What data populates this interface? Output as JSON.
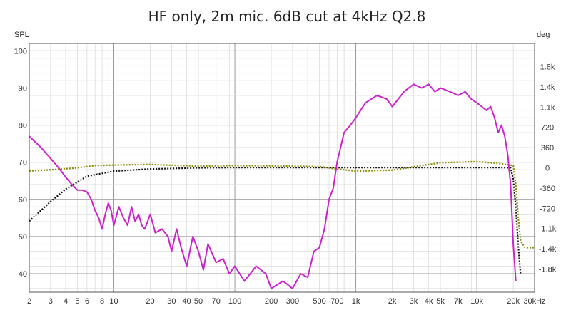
{
  "chart_data": {
    "type": "line",
    "title": "HF only, 2m mic. 6dB cut at 4kHz Q2.8",
    "left_axis_label": "SPL",
    "right_axis_label": "deg",
    "x_unit_suffix": "kHz",
    "x_scale": "log",
    "xlim": [
      2,
      30000
    ],
    "ylim_left": [
      35,
      102
    ],
    "ylim_right": [
      -2213,
      2213
    ],
    "x_ticks": [
      {
        "value": 2,
        "label": "2"
      },
      {
        "value": 3,
        "label": "3"
      },
      {
        "value": 4,
        "label": "4"
      },
      {
        "value": 5,
        "label": "5"
      },
      {
        "value": 6,
        "label": "6"
      },
      {
        "value": 8,
        "label": "8"
      },
      {
        "value": 10,
        "label": "10"
      },
      {
        "value": 20,
        "label": "20"
      },
      {
        "value": 30,
        "label": "30"
      },
      {
        "value": 40,
        "label": "40"
      },
      {
        "value": 50,
        "label": "50"
      },
      {
        "value": 70,
        "label": "70"
      },
      {
        "value": 100,
        "label": "100"
      },
      {
        "value": 200,
        "label": "200"
      },
      {
        "value": 300,
        "label": "300"
      },
      {
        "value": 500,
        "label": "500"
      },
      {
        "value": 700,
        "label": "700"
      },
      {
        "value": 1000,
        "label": "1k"
      },
      {
        "value": 2000,
        "label": "2k"
      },
      {
        "value": 3000,
        "label": "3k"
      },
      {
        "value": 4000,
        "label": "4k"
      },
      {
        "value": 5000,
        "label": "5k"
      },
      {
        "value": 7000,
        "label": "7k"
      },
      {
        "value": 10000,
        "label": "10k"
      },
      {
        "value": 20000,
        "label": "20k"
      },
      {
        "value": 30000,
        "label": "30kHz"
      }
    ],
    "y_ticks_left": [
      40,
      50,
      60,
      70,
      80,
      90,
      100
    ],
    "y_ticks_right": [
      {
        "value": 1800,
        "label": "1.8k"
      },
      {
        "value": 1440,
        "label": "1.4k"
      },
      {
        "value": 1080,
        "label": "1.1k"
      },
      {
        "value": 720,
        "label": "720"
      },
      {
        "value": 360,
        "label": "360"
      },
      {
        "value": 0,
        "label": "0"
      },
      {
        "value": -360,
        "label": "-360"
      },
      {
        "value": -720,
        "label": "-720"
      },
      {
        "value": -1080,
        "label": "-1.1k"
      },
      {
        "value": -1440,
        "label": "-1.4k"
      },
      {
        "value": -1800,
        "label": "-1.8k"
      }
    ],
    "grid": true,
    "colors": {
      "spl_series": "#cc22cc",
      "phase_series": "#8a8a00",
      "reference_series": "#111111",
      "grid_major": "#999999",
      "grid_minor": "#dddddd"
    },
    "series": [
      {
        "axis": "left",
        "style": "solid",
        "x": [
          2,
          2.5,
          3,
          3.5,
          4,
          4.5,
          5,
          5.5,
          6,
          6.5,
          7,
          7.5,
          8,
          8.5,
          9,
          9.5,
          10,
          11,
          12,
          13,
          14,
          15,
          16,
          17,
          18,
          19,
          20,
          22,
          25,
          28,
          30,
          33,
          36,
          40,
          45,
          50,
          55,
          60,
          70,
          80,
          90,
          100,
          120,
          150,
          180,
          200,
          250,
          300,
          350,
          400,
          450,
          500,
          550,
          600,
          650,
          700,
          800,
          900,
          1000,
          1200,
          1500,
          1800,
          2000,
          2500,
          3000,
          3500,
          4000,
          4500,
          5000,
          6000,
          7000,
          8000,
          9000,
          10000,
          11000,
          12000,
          13000,
          14000,
          15000,
          16000,
          17000,
          18000,
          19000,
          20000,
          21000
        ],
        "y": [
          77,
          74,
          71,
          68.5,
          66,
          64,
          62.5,
          62.5,
          62,
          60,
          57,
          55,
          52,
          56,
          59,
          57,
          53,
          58,
          55,
          53,
          58,
          54,
          56,
          53,
          52,
          54,
          56,
          51,
          52,
          50,
          46,
          52,
          47,
          42,
          50,
          46,
          41,
          48,
          43,
          44,
          40,
          42,
          38,
          42,
          40,
          36,
          38,
          36,
          40,
          39,
          46,
          47,
          52,
          60,
          63,
          70,
          78,
          80,
          82,
          86,
          88,
          87,
          85,
          89,
          91,
          90,
          91,
          89,
          90,
          89,
          88,
          89,
          87,
          86,
          85,
          84,
          85,
          82,
          78,
          80,
          77,
          72,
          64,
          48,
          38
        ]
      },
      {
        "axis": "right",
        "style": "dotted",
        "x": [
          2,
          3,
          5,
          7,
          10,
          20,
          50,
          100,
          200,
          500,
          1000,
          2000,
          5000,
          10000,
          15000,
          20000,
          21000,
          22000,
          23000,
          25000,
          28000,
          30000
        ],
        "y": [
          -55,
          -35,
          0,
          40,
          50,
          60,
          30,
          40,
          35,
          20,
          -60,
          -40,
          90,
          110,
          80,
          40,
          -300,
          -900,
          -1300,
          -1420,
          -1420,
          -1420
        ]
      },
      {
        "axis": "right",
        "style": "dotted",
        "x": [
          2,
          3,
          4,
          6,
          10,
          20,
          50,
          100,
          200,
          500,
          1000,
          2000,
          5000,
          10000,
          15000,
          19000,
          20000,
          21000,
          22000,
          23000
        ],
        "y": [
          -950,
          -600,
          -380,
          -150,
          -60,
          -20,
          0,
          5,
          5,
          5,
          5,
          5,
          5,
          5,
          5,
          0,
          -200,
          -700,
          -1400,
          -1900
        ]
      }
    ]
  }
}
